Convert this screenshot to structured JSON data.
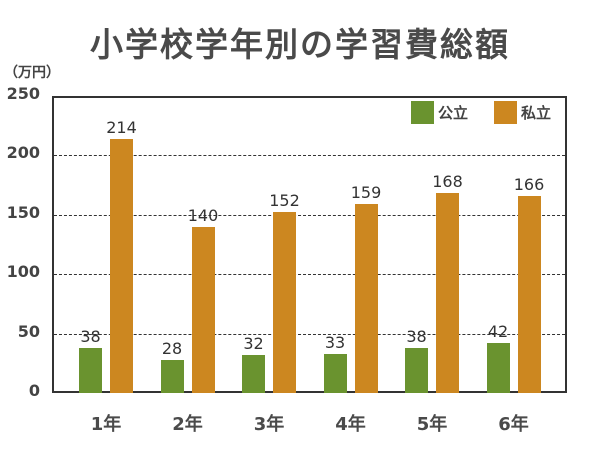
{
  "title": "小学校学年別の学習費総額",
  "unit_label": "（万円）",
  "legend": [
    {
      "label": "公立",
      "color": "#6a932f"
    },
    {
      "label": "私立",
      "color": "#cc8720"
    }
  ],
  "yticks": [
    "250",
    "200",
    "150",
    "100",
    "50",
    "0"
  ],
  "categories": [
    "1年",
    "2年",
    "3年",
    "4年",
    "5年",
    "6年"
  ],
  "values_public": [
    "38",
    "28",
    "32",
    "33",
    "38",
    "42"
  ],
  "values_private": [
    "214",
    "140",
    "152",
    "159",
    "168",
    "166"
  ],
  "chart_data": {
    "type": "bar",
    "title": "小学校学年別の学習費総額",
    "xlabel": "",
    "ylabel": "（万円）",
    "categories": [
      "1年",
      "2年",
      "3年",
      "4年",
      "5年",
      "6年"
    ],
    "series": [
      {
        "name": "公立",
        "color": "#6a932f",
        "values": [
          38,
          28,
          32,
          33,
          38,
          42
        ]
      },
      {
        "name": "私立",
        "color": "#cc8720",
        "values": [
          214,
          140,
          152,
          159,
          168,
          166
        ]
      }
    ],
    "ylim": [
      0,
      250
    ],
    "yticks": [
      0,
      50,
      100,
      150,
      200,
      250
    ],
    "grid": "horizontal dashed",
    "legend_position": "top-right inside plot",
    "data_labels": true
  }
}
